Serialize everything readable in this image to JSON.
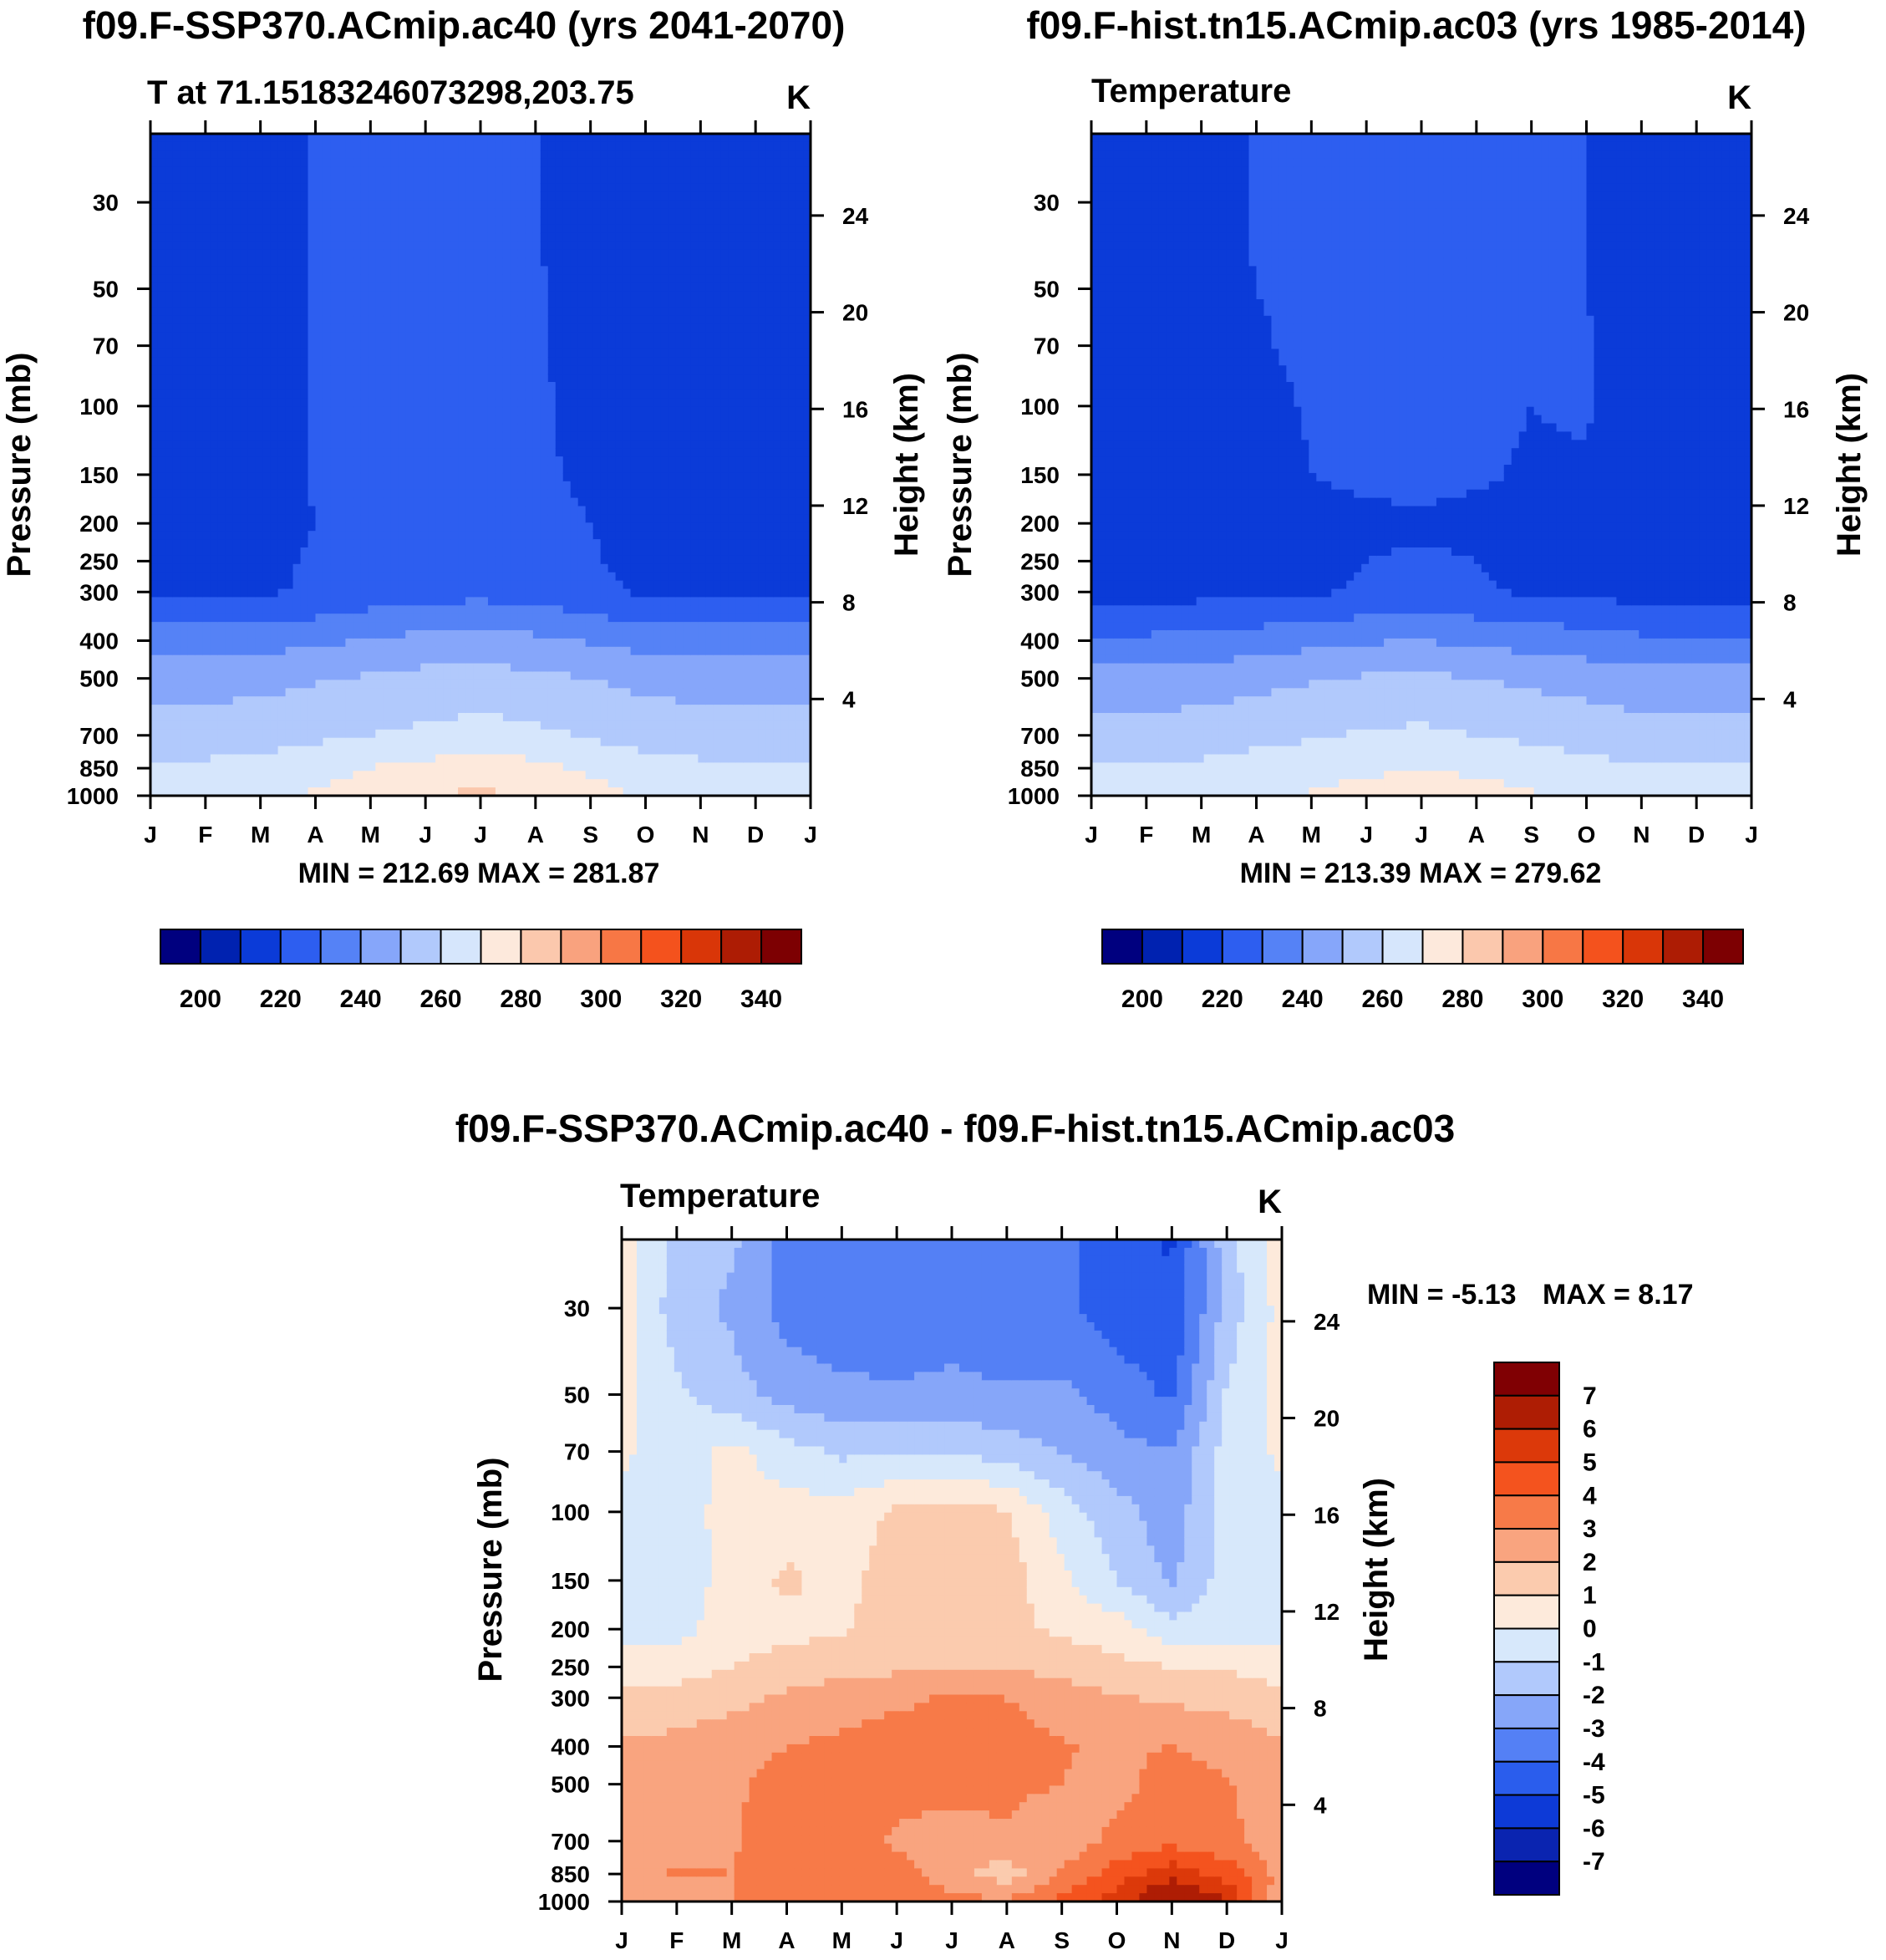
{
  "colors": {
    "abs_palette": [
      "#00007f",
      "#0022b0",
      "#0b3bd8",
      "#2d5ef0",
      "#5582f6",
      "#86a6fa",
      "#b1c9fc",
      "#d6e6fc",
      "#fde9dc",
      "#fbc8ad",
      "#f9a27e",
      "#f77745",
      "#f4521d",
      "#d93608",
      "#ad1c04",
      "#7d0002"
    ],
    "diff_palette": [
      "#00007f",
      "#0a24b0",
      "#0d3ad7",
      "#2a5ded",
      "#5480f5",
      "#86a6f9",
      "#b1c9fc",
      "#d7e8fb",
      "#fdeadb",
      "#fbcbae",
      "#f9a47f",
      "#f77a48",
      "#f4531e",
      "#dc390a",
      "#ae1d04",
      "#800003"
    ]
  },
  "panels": {
    "top_left": {
      "title": "f09.F-SSP370.ACmip.ac40 (yrs 2041-2070)",
      "subtitle": "T at 71.15183246073298,203.75",
      "units": "K",
      "ylabel": "Pressure (mb)",
      "y2label": "Height (km)",
      "minmax": "MIN = 212.69 MAX = 281.87",
      "colorbar_labels": [
        "200",
        "220",
        "240",
        "260",
        "280",
        "300",
        "320",
        "340"
      ]
    },
    "top_right": {
      "title": "f09.F-hist.tn15.ACmip.ac03 (yrs 1985-2014)",
      "subtitle": "Temperature",
      "units": "K",
      "ylabel": "Pressure (mb)",
      "y2label": "Height (km)",
      "minmax": "MIN = 213.39 MAX = 279.62",
      "colorbar_labels": [
        "200",
        "220",
        "240",
        "260",
        "280",
        "300",
        "320",
        "340"
      ]
    },
    "bottom": {
      "title": "f09.F-SSP370.ACmip.ac40 - f09.F-hist.tn15.ACmip.ac03",
      "subtitle": "Temperature",
      "units": "K",
      "ylabel": "Pressure (mb)",
      "y2label": "Height (km)",
      "minmax_min": "MIN =  -5.13",
      "minmax_max": "MAX =   8.17",
      "colorbar_labels": [
        "7",
        "6",
        "5",
        "4",
        "3",
        "2",
        "1",
        "0",
        "-1",
        "-2",
        "-3",
        "-4",
        "-5",
        "-6",
        "-7"
      ]
    }
  },
  "chart_data": [
    {
      "type": "heatmap",
      "title": "f09.F-SSP370.ACmip.ac40 (yrs 2041-2070)",
      "subtitle": "T at 71.15183246073298,203.75",
      "units": "K",
      "xlabel": "",
      "ylabel": "Pressure (mb)",
      "y2label": "Height (km)",
      "x_ticks": [
        "J",
        "F",
        "M",
        "A",
        "M",
        "J",
        "J",
        "A",
        "S",
        "O",
        "N",
        "D",
        "J"
      ],
      "y_ticks": [
        30,
        50,
        70,
        100,
        150,
        200,
        250,
        300,
        400,
        500,
        700,
        850,
        1000
      ],
      "y2_ticks": [
        24,
        20,
        16,
        12,
        8,
        4
      ],
      "ylim": [
        20,
        1000
      ],
      "y_scale": "log",
      "contour_levels": [
        190,
        200,
        210,
        220,
        230,
        240,
        250,
        260,
        270,
        280,
        290,
        300,
        310,
        320,
        330,
        340,
        350
      ],
      "colorbar_ticks": [
        200,
        220,
        240,
        260,
        280,
        300,
        320,
        340
      ],
      "min": 212.69,
      "max": 281.87,
      "grid_months": [
        0,
        1,
        2,
        3,
        4,
        5,
        6,
        7,
        8,
        9,
        10,
        11,
        12
      ],
      "grid_pressure": [
        20,
        30,
        50,
        70,
        100,
        150,
        200,
        250,
        300,
        400,
        500,
        700,
        850,
        1000
      ],
      "values_T_profile_by_month": [
        [
          214,
          214,
          214,
          214,
          214,
          214,
          215,
          217,
          219,
          235,
          246,
          255,
          262,
          266
        ],
        [
          214,
          214,
          214,
          214,
          214,
          214,
          215,
          217,
          219,
          235,
          246,
          255,
          262,
          267
        ],
        [
          215,
          215,
          215,
          215,
          215,
          215,
          216,
          218,
          219,
          236,
          247,
          256,
          263,
          268
        ],
        [
          221,
          221,
          221,
          221,
          221,
          221,
          220,
          221,
          221,
          238,
          249,
          258,
          266,
          271
        ],
        [
          222,
          222,
          222,
          222,
          222,
          222,
          222,
          223,
          224,
          241,
          251,
          260,
          270,
          276
        ],
        [
          222,
          222,
          222,
          222,
          222,
          222,
          223,
          224,
          226,
          243,
          253,
          262,
          273,
          280
        ],
        [
          222,
          222,
          222,
          222,
          222,
          222,
          224,
          225,
          227,
          244,
          254,
          264,
          275,
          282
        ],
        [
          221,
          221,
          221,
          221,
          221,
          221,
          222,
          224,
          226,
          242,
          252,
          262,
          273,
          279
        ],
        [
          214,
          214,
          215,
          217,
          218,
          219,
          220,
          221,
          222,
          239,
          250,
          259,
          268,
          274
        ],
        [
          214,
          214,
          214,
          214,
          214,
          214,
          215,
          217,
          219,
          236,
          247,
          256,
          264,
          269
        ],
        [
          214,
          214,
          214,
          214,
          214,
          214,
          215,
          217,
          219,
          235,
          246,
          255,
          262,
          267
        ],
        [
          213,
          213,
          213,
          213,
          213,
          213,
          214,
          217,
          219,
          235,
          246,
          255,
          262,
          266
        ],
        [
          214,
          214,
          214,
          214,
          214,
          214,
          215,
          217,
          219,
          235,
          246,
          255,
          262,
          266
        ]
      ]
    },
    {
      "type": "heatmap",
      "title": "f09.F-hist.tn15.ACmip.ac03 (yrs 1985-2014)",
      "subtitle": "Temperature",
      "units": "K",
      "xlabel": "",
      "ylabel": "Pressure (mb)",
      "y2label": "Height (km)",
      "x_ticks": [
        "J",
        "F",
        "M",
        "A",
        "M",
        "J",
        "J",
        "A",
        "S",
        "O",
        "N",
        "D",
        "J"
      ],
      "y_ticks": [
        30,
        50,
        70,
        100,
        150,
        200,
        250,
        300,
        400,
        500,
        700,
        850,
        1000
      ],
      "y2_ticks": [
        24,
        20,
        16,
        12,
        8,
        4
      ],
      "ylim": [
        20,
        1000
      ],
      "y_scale": "log",
      "contour_levels": [
        190,
        200,
        210,
        220,
        230,
        240,
        250,
        260,
        270,
        280,
        290,
        300,
        310,
        320,
        330,
        340,
        350
      ],
      "colorbar_ticks": [
        200,
        220,
        240,
        260,
        280,
        300,
        320,
        340
      ],
      "min": 213.39,
      "max": 279.62,
      "grid_months": [
        0,
        1,
        2,
        3,
        4,
        5,
        6,
        7,
        8,
        9,
        10,
        11,
        12
      ],
      "grid_pressure": [
        20,
        30,
        50,
        70,
        100,
        150,
        200,
        250,
        300,
        400,
        500,
        700,
        850,
        1000
      ],
      "values_T_profile_by_month": [
        [
          214,
          214,
          214,
          214,
          214,
          214,
          214,
          215,
          216,
          232,
          244,
          254,
          261,
          264
        ],
        [
          214,
          214,
          214,
          214,
          214,
          214,
          214,
          215,
          216,
          232,
          244,
          254,
          261,
          264
        ],
        [
          216,
          216,
          216,
          216,
          215,
          215,
          215,
          216,
          217,
          233,
          245,
          255,
          262,
          266
        ],
        [
          221,
          221,
          220,
          219,
          217,
          216,
          215,
          216,
          217,
          235,
          247,
          257,
          264,
          268
        ],
        [
          222,
          222,
          222,
          222,
          221,
          220,
          217,
          218,
          219,
          237,
          249,
          259,
          266,
          271
        ],
        [
          223,
          223,
          223,
          223,
          223,
          222,
          218,
          220,
          221,
          239,
          251,
          261,
          268,
          274
        ],
        [
          223,
          223,
          223,
          223,
          223,
          222,
          219,
          221,
          222,
          240,
          252,
          262,
          270,
          276
        ],
        [
          222,
          222,
          222,
          222,
          222,
          221,
          218,
          220,
          221,
          238,
          250,
          260,
          268,
          274
        ],
        [
          221,
          221,
          221,
          221,
          220,
          219,
          217,
          218,
          219,
          236,
          248,
          258,
          266,
          271
        ],
        [
          220,
          220,
          220,
          221,
          221,
          219,
          216,
          217,
          218,
          234,
          246,
          256,
          263,
          267
        ],
        [
          214,
          214,
          214,
          214,
          214,
          214,
          214,
          215,
          216,
          232,
          244,
          254,
          261,
          264
        ],
        [
          213,
          213,
          213,
          213,
          213,
          213,
          214,
          215,
          216,
          232,
          244,
          254,
          261,
          264
        ],
        [
          214,
          214,
          214,
          214,
          214,
          214,
          214,
          215,
          216,
          232,
          244,
          254,
          261,
          264
        ]
      ]
    },
    {
      "type": "heatmap",
      "title": "f09.F-SSP370.ACmip.ac40 - f09.F-hist.tn15.ACmip.ac03",
      "subtitle": "Temperature",
      "units": "K",
      "xlabel": "",
      "ylabel": "Pressure (mb)",
      "y2label": "Height (km)",
      "x_ticks": [
        "J",
        "F",
        "M",
        "A",
        "M",
        "J",
        "J",
        "A",
        "S",
        "O",
        "N",
        "D",
        "J"
      ],
      "y_ticks": [
        30,
        50,
        70,
        100,
        150,
        200,
        250,
        300,
        400,
        500,
        700,
        850,
        1000
      ],
      "y2_ticks": [
        24,
        20,
        16,
        12,
        8,
        4
      ],
      "ylim": [
        20,
        1000
      ],
      "y_scale": "log",
      "contour_levels": [
        -8,
        -7,
        -6,
        -5,
        -4,
        -3,
        -2,
        -1,
        0,
        1,
        2,
        3,
        4,
        5,
        6,
        7,
        8
      ],
      "colorbar_ticks": [
        7,
        6,
        5,
        4,
        3,
        2,
        1,
        0,
        -1,
        -2,
        -3,
        -4,
        -5,
        -6,
        -7
      ],
      "min": -5.13,
      "max": 8.17,
      "grid_months": [
        0,
        1,
        2,
        3,
        4,
        5,
        6,
        7,
        8,
        9,
        10,
        11,
        12
      ],
      "grid_pressure": [
        20,
        30,
        50,
        70,
        100,
        150,
        200,
        250,
        300,
        400,
        500,
        700,
        850,
        1000
      ],
      "values_dT_profile_by_month": [
        [
          0.5,
          0.4,
          0.3,
          0.2,
          -0.3,
          -0.6,
          -0.5,
          0.5,
          1.2,
          2.2,
          2.5,
          2.5,
          2.6,
          2.2
        ],
        [
          -1.2,
          -1.5,
          -0.8,
          -0.6,
          -0.5,
          -0.6,
          -0.4,
          0.5,
          1.4,
          2.3,
          2.6,
          2.7,
          3.1,
          2.5
        ],
        [
          -1.8,
          -2.2,
          -1.6,
          0.3,
          0.4,
          0.4,
          0.6,
          1.0,
          1.7,
          2.6,
          2.8,
          2.9,
          3.0,
          3.0
        ],
        [
          -3.3,
          -3.4,
          -2.4,
          -0.6,
          0.4,
          1.2,
          0.7,
          1.4,
          2.2,
          3.0,
          3.5,
          3.6,
          3.5,
          3.4
        ],
        [
          -3.5,
          -3.6,
          -2.8,
          -1.2,
          0.4,
          0.6,
          0.9,
          1.6,
          2.6,
          3.2,
          3.4,
          3.6,
          3.6,
          3.8
        ],
        [
          -3.4,
          -3.5,
          -2.9,
          -1.2,
          1.2,
          1.6,
          1.6,
          1.8,
          2.8,
          3.5,
          3.4,
          2.8,
          3.4,
          3.7
        ],
        [
          -3.2,
          -3.4,
          -2.8,
          -1.0,
          1.3,
          1.7,
          1.5,
          2.0,
          3.1,
          3.6,
          3.3,
          2.6,
          2.4,
          3.3
        ],
        [
          -3.4,
          -3.6,
          -2.9,
          -1.5,
          1.1,
          1.5,
          1.3,
          1.9,
          3.0,
          3.4,
          3.2,
          2.9,
          1.4,
          3.1
        ],
        [
          -3.7,
          -3.8,
          -2.8,
          -2.0,
          -0.5,
          0.2,
          0.8,
          1.6,
          2.5,
          3.1,
          3.0,
          2.3,
          3.1,
          4.2
        ],
        [
          -4.5,
          -4.6,
          -3.4,
          -2.7,
          -1.6,
          -1.0,
          0.5,
          1.3,
          2.1,
          2.8,
          2.6,
          3.3,
          4.5,
          5.5
        ],
        [
          -5.1,
          -4.9,
          -4.2,
          -3.0,
          -2.6,
          -2.2,
          -0.7,
          1.0,
          1.8,
          3.0,
          3.6,
          3.7,
          5.6,
          7.5
        ],
        [
          -1.4,
          -1.6,
          -0.9,
          -0.6,
          -0.4,
          -0.5,
          -0.4,
          0.9,
          1.7,
          2.6,
          3.1,
          3.2,
          4.6,
          6.0
        ],
        [
          0.5,
          0.4,
          0.3,
          0.2,
          -0.3,
          -0.6,
          -0.5,
          0.5,
          1.2,
          2.2,
          2.5,
          2.5,
          2.6,
          2.2
        ]
      ]
    }
  ]
}
